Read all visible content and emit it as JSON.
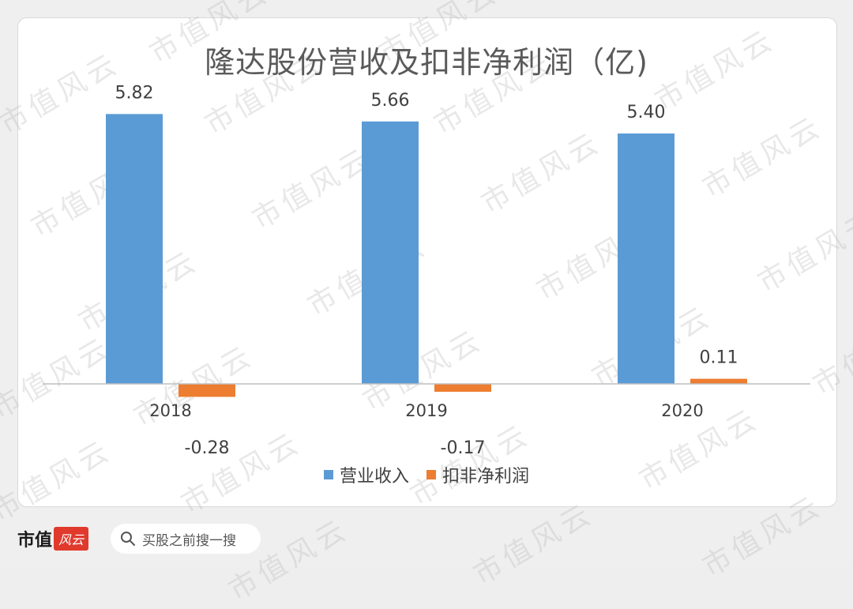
{
  "chart_data": {
    "type": "bar",
    "title": "隆达股份营收及扣非净利润（亿)",
    "categories": [
      "2018",
      "2019",
      "2020"
    ],
    "series": [
      {
        "name": "营业收入",
        "color": "#5b9bd5",
        "values": [
          5.82,
          5.66,
          5.4
        ],
        "labels": [
          "5.82",
          "5.66",
          "5.40"
        ]
      },
      {
        "name": "扣非净利润",
        "color": "#ed7d31",
        "values": [
          -0.28,
          -0.17,
          0.11
        ],
        "labels": [
          "-0.28",
          "-0.17",
          "0.11"
        ]
      }
    ],
    "grid": false,
    "legend_position": "bottom"
  },
  "watermark_text": "市值风云",
  "footer": {
    "logo_text": "市值",
    "logo_badge": "风云",
    "search_icon": "search-icon",
    "search_placeholder": "买股之前搜一搜"
  }
}
